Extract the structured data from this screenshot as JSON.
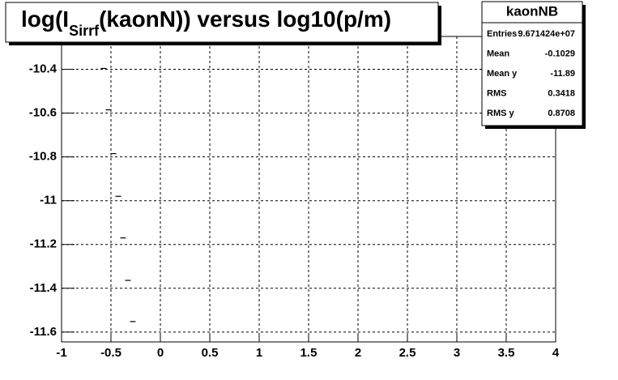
{
  "chart_data": {
    "type": "scatter",
    "title_parts": [
      "log(I",
      "Sirrf",
      "(kaonN)) versus log10(p/m)"
    ],
    "x": [
      -0.574,
      -0.525,
      -0.475,
      -0.426,
      -0.377,
      -0.328,
      -0.279
    ],
    "values": [
      -10.396,
      -10.585,
      -10.785,
      -10.98,
      -11.17,
      -11.364,
      -11.552
    ],
    "color": "#000000",
    "xlim": [
      -1,
      4
    ],
    "xticks": [
      -1,
      -0.5,
      0,
      0.5,
      1,
      1.5,
      2,
      2.5,
      3,
      3.5,
      4
    ],
    "ylim": [
      -11.645,
      -10.25
    ],
    "yticks": [
      -10.4,
      -10.6,
      -10.8,
      -11,
      -11.2,
      -11.4,
      -11.6
    ],
    "grid": true,
    "stats": {
      "name": "kaonNB",
      "rows": [
        [
          "Entries",
          "9.671424e+07"
        ],
        [
          "Mean",
          "-0.1029"
        ],
        [
          "Mean y",
          "-11.89"
        ],
        [
          "RMS",
          "0.3418"
        ],
        [
          "RMS y",
          "0.8708"
        ]
      ]
    }
  }
}
